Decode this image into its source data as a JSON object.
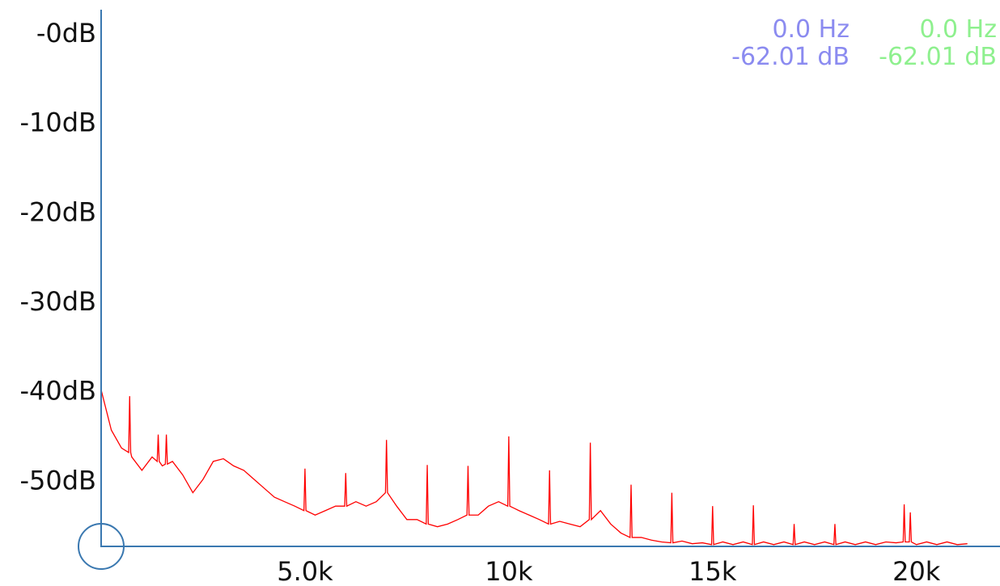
{
  "chart_data": {
    "type": "line",
    "xlim": [
      0,
      22050
    ],
    "ylim": [
      -60,
      0
    ],
    "xticks": [
      {
        "value": 5000,
        "label": "5.0k"
      },
      {
        "value": 10000,
        "label": "10k"
      },
      {
        "value": 15000,
        "label": "15k"
      },
      {
        "value": 20000,
        "label": "20k"
      }
    ],
    "x_minor_ticks": [
      2500,
      7500,
      12500,
      17500
    ],
    "yticks": [
      {
        "value": 0,
        "label": "-0dB"
      },
      {
        "value": -10,
        "label": "-10dB"
      },
      {
        "value": -20,
        "label": "-20dB"
      },
      {
        "value": -30,
        "label": "-30dB"
      },
      {
        "value": -40,
        "label": "-40dB"
      },
      {
        "value": -50,
        "label": "-50dB"
      }
    ],
    "grid": true,
    "cursors": [
      {
        "frequency": "0.0 Hz",
        "level": "-62.01 dB",
        "color": "#8b8bf0"
      },
      {
        "frequency": "0.0 Hz",
        "level": "-62.01 dB",
        "color": "#8ef08e"
      }
    ],
    "series": [
      {
        "color": "#ff0000",
        "x": [
          0,
          250,
          500,
          675,
          700,
          725,
          750,
          1000,
          1250,
          1375,
          1400,
          1425,
          1500,
          1575,
          1600,
          1625,
          1750,
          2000,
          2250,
          2500,
          2750,
          3000,
          3250,
          3500,
          3750,
          4000,
          4250,
          4500,
          4750,
          4975,
          5000,
          5025,
          5250,
          5500,
          5750,
          5975,
          6000,
          6025,
          6250,
          6500,
          6750,
          6975,
          7000,
          7025,
          7250,
          7500,
          7750,
          7975,
          8000,
          8025,
          8250,
          8500,
          8750,
          8975,
          9000,
          9025,
          9250,
          9500,
          9750,
          9975,
          10000,
          10025,
          10250,
          10500,
          10750,
          10975,
          11000,
          11025,
          11250,
          11500,
          11750,
          11975,
          12000,
          12025,
          12250,
          12500,
          12750,
          12975,
          13000,
          13025,
          13250,
          13500,
          13750,
          13975,
          14000,
          14025,
          14250,
          14500,
          14750,
          14975,
          15000,
          15025,
          15250,
          15500,
          15750,
          15975,
          16000,
          16025,
          16250,
          16500,
          16750,
          16975,
          17000,
          17025,
          17250,
          17500,
          17750,
          17975,
          18000,
          18025,
          18250,
          18500,
          18750,
          19000,
          19250,
          19500,
          19675,
          19700,
          19725,
          19825,
          19850,
          19875,
          20000,
          20250,
          20500,
          20750,
          21000,
          21250
        ],
        "values": [
          -42.5,
          -47,
          -49,
          -49.5,
          -43.2,
          -49.5,
          -50,
          -51.5,
          -50,
          -50.5,
          -47.5,
          -50.5,
          -51,
          -50.8,
          -47.5,
          -50.8,
          -50.5,
          -52,
          -54,
          -52.5,
          -50.5,
          -50.2,
          -51,
          -51.5,
          -52.5,
          -53.5,
          -54.5,
          -55,
          -55.5,
          -56,
          -51.3,
          -56,
          -56.5,
          -56,
          -55.5,
          -55.5,
          -51.8,
          -55.5,
          -55,
          -55.5,
          -55,
          -54,
          -48.1,
          -54,
          -55.5,
          -57,
          -57,
          -57.5,
          -50.9,
          -57.5,
          -57.8,
          -57.5,
          -57,
          -56.5,
          -51,
          -56.5,
          -56.5,
          -55.5,
          -55,
          -55.5,
          -47.7,
          -55.5,
          -56,
          -56.5,
          -57,
          -57.5,
          -51.5,
          -57.5,
          -57.2,
          -57.5,
          -57.8,
          -57,
          -48.4,
          -57,
          -56,
          -57.5,
          -58.5,
          -59,
          -53.1,
          -59,
          -59,
          -59.3,
          -59.5,
          -59.6,
          -54,
          -59.6,
          -59.4,
          -59.7,
          -59.6,
          -59.8,
          -55.5,
          -59.8,
          -59.5,
          -59.8,
          -59.5,
          -59.8,
          -55.4,
          -59.8,
          -59.5,
          -59.8,
          -59.5,
          -59.8,
          -57.5,
          -59.8,
          -59.5,
          -59.8,
          -59.5,
          -59.8,
          -57.5,
          -59.8,
          -59.5,
          -59.8,
          -59.5,
          -59.8,
          -59.5,
          -59.6,
          -59.5,
          -55.3,
          -59.5,
          -59.5,
          -56.2,
          -59.5,
          -59.8,
          -59.5,
          -59.8,
          -59.5,
          -59.8,
          -59.7
        ]
      }
    ]
  }
}
